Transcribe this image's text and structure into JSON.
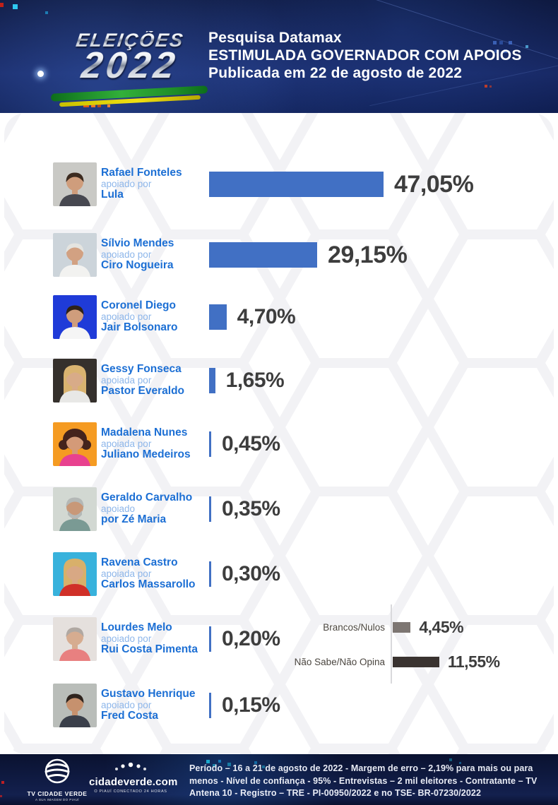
{
  "header": {
    "logo_line1": "ELEIÇÕES",
    "logo_line2": "2022",
    "title_lines": [
      "Pesquisa Datamax",
      "ESTIMULADA GOVERNADOR COM APOIOS",
      "Publicada em 22 de agosto de 2022"
    ]
  },
  "chart_data": {
    "type": "bar",
    "orientation": "horizontal",
    "title": "Pesquisa Datamax - ESTIMULADA GOVERNADOR COM APOIOS - Publicada em 22 de agosto de 2022",
    "unit": "%",
    "categories": [
      "Rafael Fonteles (apoiado por Lula)",
      "Sílvio Mendes (apoiado por Ciro Nogueira)",
      "Coronel Diego (apoiado por Jair Bolsonaro)",
      "Gessy Fonseca (apoiada por Pastor Everaldo)",
      "Madalena Nunes (apoiada por Juliano Medeiros)",
      "Geraldo Carvalho (apoiado por Zé Maria)",
      "Ravena Castro (apoiada por Carlos Massarollo)",
      "Lourdes Melo (apoiado por Rui Costa Pimenta)",
      "Gustavo Henrique (apoiado por Fred Costa)"
    ],
    "values": [
      47.05,
      29.15,
      4.7,
      1.65,
      0.45,
      0.35,
      0.3,
      0.2,
      0.15
    ],
    "value_labels": [
      "47,05%",
      "29,15%",
      "4,70%",
      "1,65%",
      "0,45%",
      "0,35%",
      "0,30%",
      "0,20%",
      "0,15%"
    ],
    "others": [
      {
        "label": "Brancos/Nulos",
        "value": 4.45,
        "value_label": "4,45%"
      },
      {
        "label": "Não Sabe/Não Opina",
        "value": 11.55,
        "value_label": "11,55%"
      }
    ],
    "xlim": [
      0,
      50
    ],
    "grid": false,
    "legend": false
  },
  "candidates": [
    {
      "name": "Rafael Fonteles",
      "prefix": "apoiado por",
      "supporter": "Lula",
      "value": 47.05,
      "value_label": "47,05%",
      "photo": {
        "bg": "#c9c9c5",
        "hair": "#3c2b20",
        "skin": "#cf9d7c",
        "shirt": "#474850",
        "style": "short"
      }
    },
    {
      "name": "Sílvio Mendes",
      "prefix": "apoiado por",
      "supporter": "Ciro Nogueira",
      "value": 29.15,
      "value_label": "29,15%",
      "photo": {
        "bg": "#ccd4da",
        "hair": "#e4e4e0",
        "skin": "#d2a182",
        "shirt": "#f2f2f0",
        "style": "short"
      }
    },
    {
      "name": "Coronel Diego",
      "prefix": "apoiado por",
      "supporter": "Jair Bolsonaro",
      "value": 4.7,
      "value_label": "4,70%",
      "photo": {
        "bg": "#1f3bd8",
        "hair": "#2e2218",
        "skin": "#cf9d7c",
        "shirt": "#f5f5f5",
        "style": "short"
      }
    },
    {
      "name": "Gessy Fonseca",
      "prefix": "apoiada por",
      "supporter": "Pastor Everaldo",
      "value": 1.65,
      "value_label": "1,65%",
      "photo": {
        "bg": "#35302c",
        "hair": "#d9b370",
        "skin": "#d8ab88",
        "shirt": "#e8e8e6",
        "style": "long"
      }
    },
    {
      "name": "Madalena Nunes",
      "prefix": "apoiada por",
      "supporter": "Juliano Medeiros",
      "value": 0.45,
      "value_label": "0,45%",
      "photo": {
        "bg": "#f59b22",
        "hair": "#45231c",
        "skin": "#d49a78",
        "shirt": "#e8418f",
        "style": "curly"
      }
    },
    {
      "name": "Geraldo Carvalho",
      "prefix": "apoiado",
      "supporter": "por Zé Maria",
      "value": 0.35,
      "value_label": "0,35%",
      "photo": {
        "bg": "#d2d8d2",
        "hair": "#b4b8b6",
        "skin": "#c89878",
        "shirt": "#7a9a94",
        "style": "beard"
      }
    },
    {
      "name": "Ravena Castro",
      "prefix": "apoiada por",
      "supporter": "Carlos Massarollo",
      "value": 0.3,
      "value_label": "0,30%",
      "photo": {
        "bg": "#38b2dc",
        "hair": "#d8b06a",
        "skin": "#d8a884",
        "shirt": "#d03028",
        "style": "long"
      }
    },
    {
      "name": "Lourdes Melo",
      "prefix": "apoiado por",
      "supporter": "Rui Costa Pimenta",
      "value": 0.2,
      "value_label": "0,20%",
      "photo": {
        "bg": "#e5e0dd",
        "hair": "#b0a8a2",
        "skin": "#d6ac90",
        "shirt": "#e88080",
        "style": "short"
      }
    },
    {
      "name": "Gustavo Henrique",
      "prefix": "apoiado por",
      "supporter": "Fred Costa",
      "value": 0.15,
      "value_label": "0,15%",
      "photo": {
        "bg": "#b9bdb9",
        "hair": "#2f241e",
        "skin": "#c6916e",
        "shirt": "#3a3f4a",
        "style": "short"
      }
    }
  ],
  "others": [
    {
      "label": "Brancos/Nulos",
      "value": 4.45,
      "value_label": "4,45%",
      "bar_color": "#7d7672"
    },
    {
      "label": "Não Sabe/Não Opina",
      "value": 11.55,
      "value_label": "11,55%",
      "bar_color": "#3a3330"
    }
  ],
  "footer": {
    "logo1_name": "TV CIDADE VERDE",
    "logo1_tagline": "A SUA IMAGEM DO PIAUÍ",
    "logo2_name": "cidadeverde.com",
    "logo2_tagline": "O PIAUÍ CONECTADO 24 HORAS",
    "disclaimer": "Período – 16 a 21 de agosto de 2022 - Margem de erro – 2,19% para mais ou para menos - Nível de confiança - 95% - Entrevistas – 2 mil eleitores - Contratante – TV Antena 10 - Registro – TRE - PI-00950/2022 e no TSE- BR-07230/2022"
  },
  "colors": {
    "bar_blue": "#4170c4",
    "name_blue": "#1c6fd4",
    "prefix_blue": "#8db6ea",
    "percent_gray": "#3d3d3d",
    "header_navy": "#172762",
    "footer_navy": "#0f1a40"
  }
}
